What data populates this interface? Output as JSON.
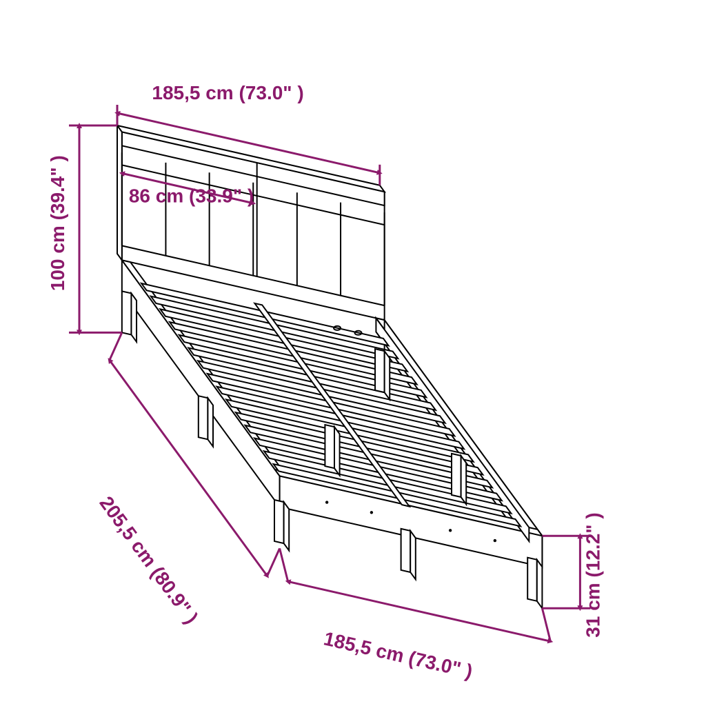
{
  "diagram": {
    "type": "technical-drawing",
    "subject": "bed-frame",
    "dimension_color": "#8b1a6b",
    "bed_stroke_color": "#000000",
    "bed_fill_color": "#ffffff",
    "background_color": "#ffffff",
    "stroke_width_dim": 3,
    "stroke_width_bed": 2,
    "font_size": 28,
    "font_weight": "bold",
    "arrow_size": 10,
    "dimensions": {
      "top_width": {
        "label": "185,5 cm (73.0\"   )"
      },
      "panel_width": {
        "label": "86 cm (33.9\"   )"
      },
      "height": {
        "label": "100 cm (39.4\"   )"
      },
      "length": {
        "label": "205,5 cm (80.9\"   )"
      },
      "foot_width": {
        "label": "185,5 cm (73.0\"   )"
      },
      "foot_height": {
        "label": "31 cm (12.2\"   )"
      }
    }
  }
}
